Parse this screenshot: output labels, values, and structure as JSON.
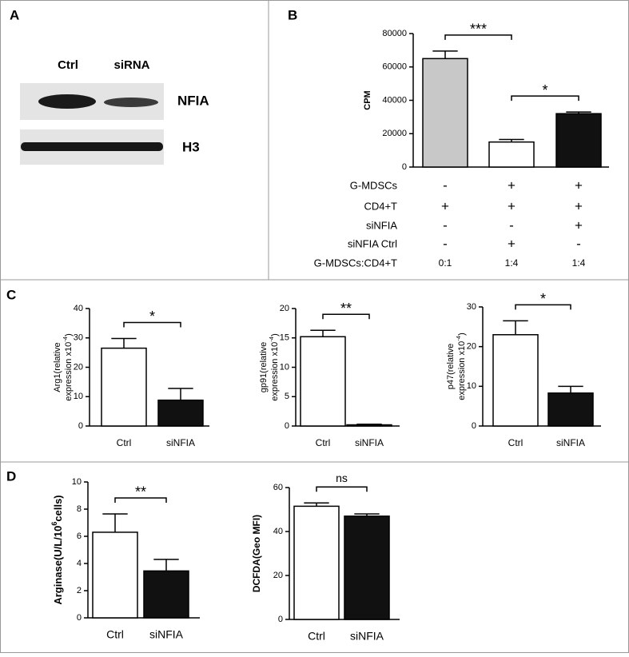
{
  "panel_labels": [
    "A",
    "B",
    "C",
    "D"
  ],
  "blot": {
    "lanes": [
      "Ctrl",
      "siRNA"
    ],
    "bands": [
      "NFIA",
      "H3"
    ]
  },
  "chart_data": [
    {
      "type": "bar",
      "ylabel": [
        [
          {
            "text": "CPM"
          }
        ]
      ],
      "values": [
        65000,
        15000,
        32000
      ],
      "errors": [
        4500,
        1500,
        1000
      ],
      "colors": [
        "#c8c8c8",
        "#ffffff",
        "#111111"
      ],
      "ylim": [
        0,
        80000
      ],
      "yticks": [
        0,
        20000,
        40000,
        60000,
        80000
      ],
      "significance": [
        {
          "from": 0,
          "to": 1,
          "label": "***"
        },
        {
          "from": 1,
          "to": 2,
          "label": "*"
        }
      ],
      "conditions": {
        "rows": [
          {
            "label": "G-MDSCs",
            "cells": [
              "-",
              "+",
              "+"
            ]
          },
          {
            "label": "CD4+T",
            "cells": [
              "+",
              "+",
              "+"
            ]
          },
          {
            "label": "siNFIA",
            "cells": [
              "-",
              "-",
              "+"
            ]
          },
          {
            "label": "siNFIA Ctrl",
            "cells": [
              "-",
              "+",
              "-"
            ]
          },
          {
            "label": "G-MDSCs:CD4+T",
            "cells": [
              "0:1",
              "1:4",
              "1:4"
            ]
          }
        ]
      }
    },
    {
      "type": "bar",
      "ylabel": [
        [
          {
            "text": "Arg1(relative"
          }
        ],
        [
          {
            "text": "expression x10"
          },
          {
            "text": "-4",
            "sup": true
          },
          {
            "text": ")"
          }
        ]
      ],
      "categories": [
        "Ctrl",
        "siNFIA"
      ],
      "values": [
        26.5,
        8.8
      ],
      "errors": [
        3.3,
        4
      ],
      "colors": [
        "#ffffff",
        "#111111"
      ],
      "ylim": [
        0,
        40
      ],
      "yticks": [
        0,
        10,
        20,
        30,
        40
      ],
      "significance": [
        {
          "from": 0,
          "to": 1,
          "label": "*"
        }
      ]
    },
    {
      "type": "bar",
      "ylabel": [
        [
          {
            "text": "gp91(relative"
          }
        ],
        [
          {
            "text": "expression x10"
          },
          {
            "text": "-4",
            "sup": true
          },
          {
            "text": ")"
          }
        ]
      ],
      "categories": [
        "Ctrl",
        "siNFIA"
      ],
      "values": [
        15.2,
        0.2
      ],
      "errors": [
        1.1,
        0.1
      ],
      "colors": [
        "#ffffff",
        "#111111"
      ],
      "ylim": [
        0,
        20
      ],
      "yticks": [
        0,
        5,
        10,
        15,
        20
      ],
      "significance": [
        {
          "from": 0,
          "to": 1,
          "label": "**"
        }
      ]
    },
    {
      "type": "bar",
      "ylabel": [
        [
          {
            "text": "p47(relative"
          }
        ],
        [
          {
            "text": "expression x10"
          },
          {
            "text": "-4",
            "sup": true
          },
          {
            "text": ")"
          }
        ]
      ],
      "categories": [
        "Ctrl",
        "siNFIA"
      ],
      "values": [
        23,
        8.3
      ],
      "errors": [
        3.5,
        1.7
      ],
      "colors": [
        "#ffffff",
        "#111111"
      ],
      "ylim": [
        0,
        30
      ],
      "yticks": [
        0,
        10,
        20,
        30
      ],
      "significance": [
        {
          "from": 0,
          "to": 1,
          "label": "*"
        }
      ]
    },
    {
      "type": "bar",
      "ylabel": [
        [
          {
            "text": "Arginase(U/L/10"
          },
          {
            "text": "6",
            "sup": true
          },
          {
            "text": "cells)"
          }
        ]
      ],
      "categories": [
        "Ctrl",
        "siNFIA"
      ],
      "values": [
        6.3,
        3.45
      ],
      "errors": [
        1.35,
        0.85
      ],
      "colors": [
        "#ffffff",
        "#111111"
      ],
      "ylim": [
        0,
        10
      ],
      "yticks": [
        0,
        2,
        4,
        6,
        8,
        10
      ],
      "significance": [
        {
          "from": 0,
          "to": 1,
          "label": "**"
        }
      ]
    },
    {
      "type": "bar",
      "ylabel": [
        [
          {
            "text": "DCFDA(Geo MFI)"
          }
        ]
      ],
      "categories": [
        "Ctrl",
        "siNFIA"
      ],
      "values": [
        51.5,
        47
      ],
      "errors": [
        1.5,
        1
      ],
      "colors": [
        "#ffffff",
        "#111111"
      ],
      "ylim": [
        0,
        60
      ],
      "yticks": [
        0,
        20,
        40,
        60
      ],
      "significance": [
        {
          "from": 0,
          "to": 1,
          "label": "ns"
        }
      ]
    }
  ]
}
